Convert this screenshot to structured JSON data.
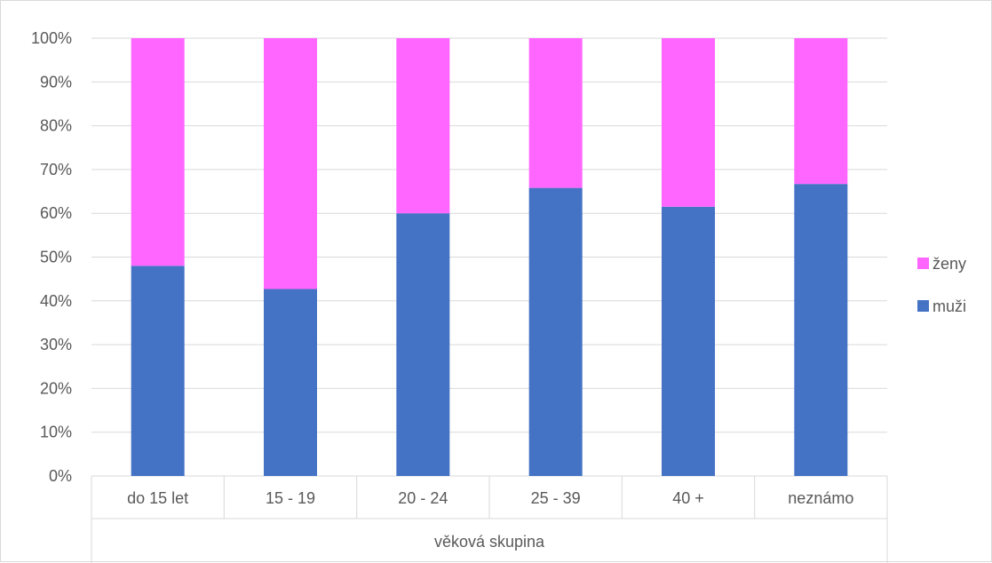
{
  "chart_data": {
    "type": "bar",
    "stacked": true,
    "normalized": true,
    "title": "",
    "xlabel": "věková skupina",
    "ylabel": "",
    "ylim": [
      0,
      100
    ],
    "y_ticks": [
      "0%",
      "10%",
      "20%",
      "30%",
      "40%",
      "50%",
      "60%",
      "70%",
      "80%",
      "90%",
      "100%"
    ],
    "categories": [
      "do 15 let",
      "15 - 19",
      "20 - 24",
      "25 - 39",
      "40 +",
      "neznámo"
    ],
    "grid": true,
    "legend_position": "right",
    "series": [
      {
        "name": "muži",
        "color": "#4472C4",
        "values": [
          48,
          42.7,
          60,
          65.8,
          61.5,
          66.7
        ]
      },
      {
        "name": "ženy",
        "color": "#FF66FF",
        "values": [
          52,
          57.3,
          40,
          34.2,
          38.5,
          33.3
        ]
      }
    ],
    "legend_order": [
      "ženy",
      "muži"
    ]
  }
}
